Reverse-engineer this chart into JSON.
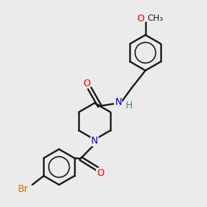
{
  "background_color": "#ebebeb",
  "bond_color": "#1a1a1a",
  "bond_width": 1.8,
  "atom_colors": {
    "O": "#ff0000",
    "N": "#0000ee",
    "Br": "#cc7700",
    "H": "#448888",
    "C": "#1a1a1a"
  },
  "font_size_atom": 10,
  "font_size_h": 10,
  "font_size_methoxy": 9
}
